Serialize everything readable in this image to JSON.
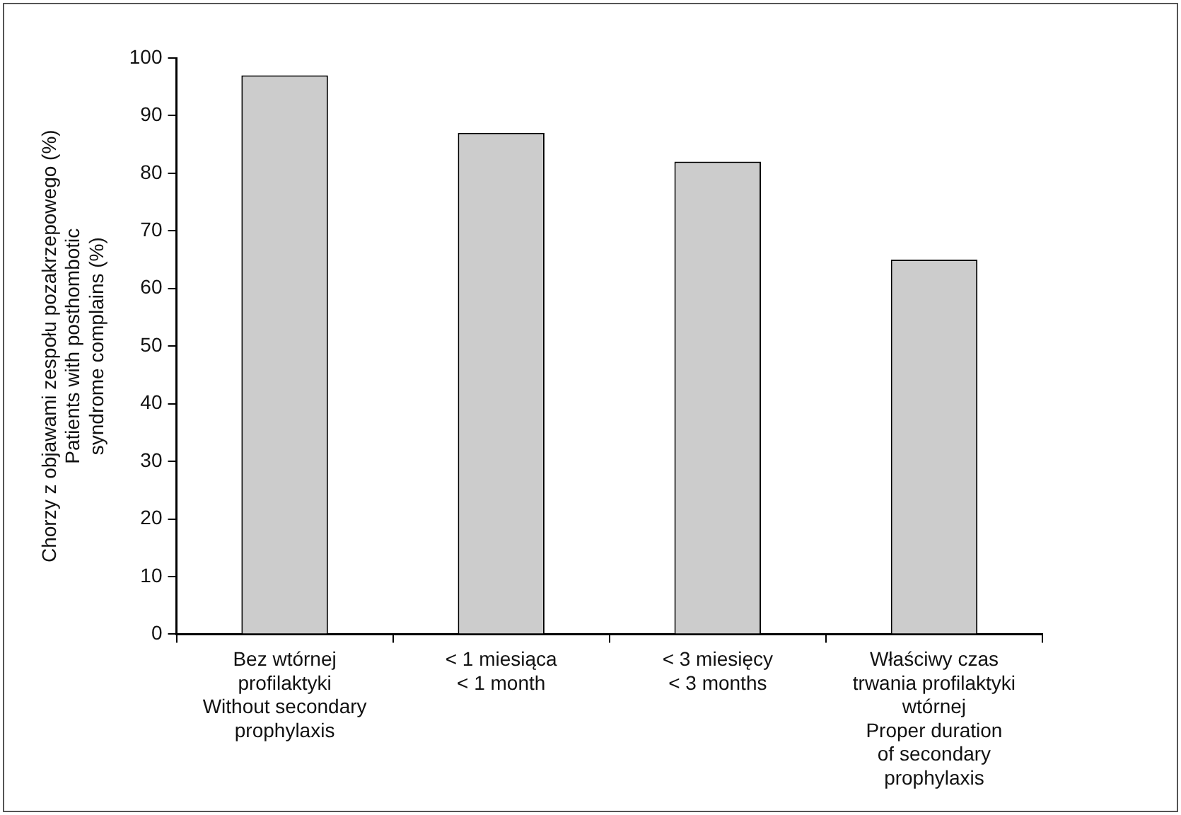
{
  "chart_data": {
    "type": "bar",
    "ylabel": "Chorzy z objawami zespołu pozakrzepowego (%)\nPatients with posthombotic\nsyndrome complains (%)",
    "categories": [
      "Bez wtórnej\nprofilaktyki\nWithout secondary\nprophylaxis",
      "< 1 miesiąca\n< 1 month",
      "< 3 miesięcy\n< 3 months",
      "Właściwy czas\ntrwania profilaktyki\nwtórnej\nProper duration\nof secondary\nprophylaxis"
    ],
    "values": [
      97,
      87,
      82,
      65
    ],
    "color": "#cccccc",
    "ylim": [
      0,
      100
    ],
    "yticks": [
      0,
      10,
      20,
      30,
      40,
      50,
      60,
      70,
      80,
      90,
      100
    ],
    "grid": false,
    "legend": false
  }
}
